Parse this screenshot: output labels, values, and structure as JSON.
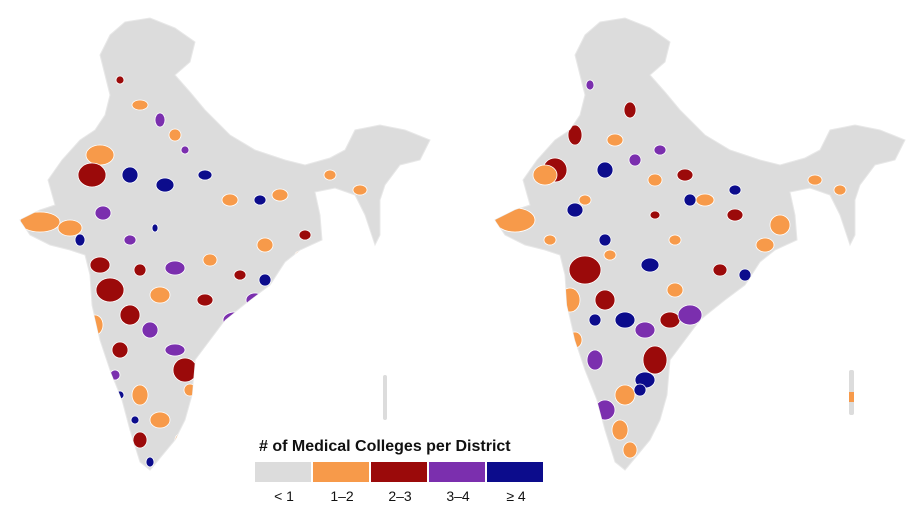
{
  "legend": {
    "title": "# of Medical Colleges per District",
    "items": [
      {
        "label": "< 1",
        "color": "#dcdcdc"
      },
      {
        "label": "1–2",
        "color": "#f79a4a"
      },
      {
        "label": "2–3",
        "color": "#9b0a0a"
      },
      {
        "label": "3–4",
        "color": "#7b2fae"
      },
      {
        "label": "≥ 4",
        "color": "#0c0c8c"
      }
    ]
  },
  "colors": {
    "none": "#dcdcdc",
    "one_two": "#f79a4a",
    "two_three": "#9b0a0a",
    "three_four": "#7b2fae",
    "four_plus": "#0c0c8c",
    "border": "#ffffff"
  }
}
